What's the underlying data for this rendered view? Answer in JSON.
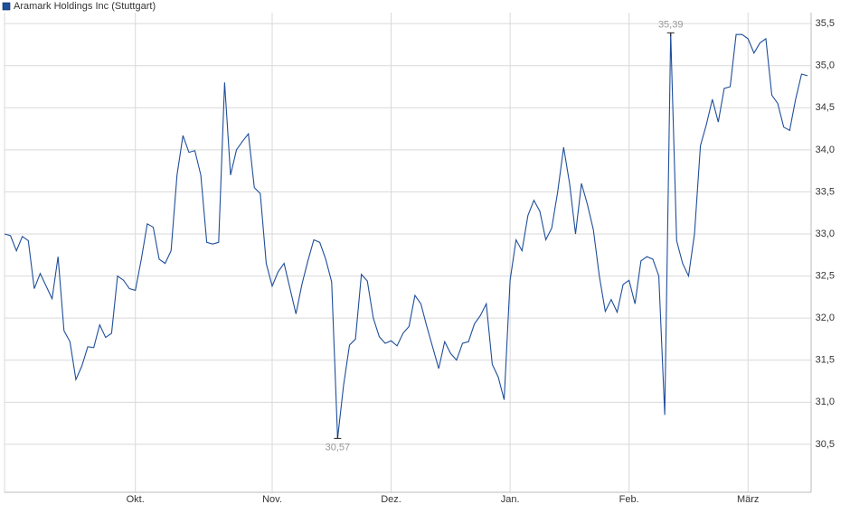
{
  "chart_data": {
    "type": "line",
    "series": [
      {
        "name": "Aramark Holdings Inc (Stuttgart)",
        "color": "#1f4e9a",
        "values": [
          33.0,
          32.98,
          32.8,
          32.97,
          32.92,
          32.35,
          32.53,
          32.38,
          32.23,
          32.73,
          31.85,
          31.72,
          31.27,
          31.43,
          31.66,
          31.65,
          31.92,
          31.77,
          31.82,
          32.5,
          32.45,
          32.35,
          32.33,
          32.7,
          33.12,
          33.08,
          32.7,
          32.65,
          32.8,
          33.7,
          34.17,
          33.97,
          33.99,
          33.7,
          32.9,
          32.88,
          32.9,
          34.8,
          33.7,
          34.0,
          34.1,
          34.19,
          33.55,
          33.48,
          32.65,
          32.38,
          32.55,
          32.65,
          32.35,
          32.05,
          32.4,
          32.68,
          32.93,
          32.9,
          32.7,
          32.43,
          30.57,
          31.2,
          31.68,
          31.75,
          32.52,
          32.44,
          32.0,
          31.78,
          31.7,
          31.73,
          31.67,
          31.82,
          31.9,
          32.27,
          32.17,
          31.9,
          31.65,
          31.4,
          31.72,
          31.58,
          31.5,
          31.7,
          31.72,
          31.93,
          32.03,
          32.17,
          31.45,
          31.3,
          31.03,
          32.45,
          32.93,
          32.8,
          33.22,
          33.4,
          33.27,
          32.93,
          33.07,
          33.5,
          34.03,
          33.6,
          33.0,
          33.6,
          33.35,
          33.05,
          32.5,
          32.08,
          32.22,
          32.07,
          32.4,
          32.45,
          32.17,
          32.68,
          32.73,
          32.7,
          32.5,
          30.85,
          35.39,
          32.92,
          32.65,
          32.5,
          33.0,
          34.05,
          34.3,
          34.6,
          34.33,
          34.73,
          34.75,
          35.37,
          35.37,
          35.32,
          35.15,
          35.27,
          35.32,
          34.65,
          34.55,
          34.27,
          34.23,
          34.6,
          34.9,
          34.88
        ],
        "value_labels": [
          null,
          null,
          null,
          null,
          null,
          null,
          null,
          null,
          null,
          null,
          null,
          null,
          null,
          null,
          null,
          null,
          null,
          null,
          null,
          null,
          null,
          null,
          null,
          null,
          null,
          null,
          null,
          null,
          null,
          null,
          null,
          null,
          null,
          null,
          null,
          null,
          null,
          null,
          null,
          null,
          null,
          null,
          null,
          null,
          null,
          null,
          null,
          null,
          null,
          null,
          null,
          null,
          null,
          null,
          null,
          null,
          "30,57",
          null,
          null,
          null,
          null,
          null,
          null,
          null,
          null,
          null,
          null,
          null,
          null,
          null,
          null,
          null,
          null,
          null,
          null,
          null,
          null,
          null,
          null,
          null,
          null,
          null,
          null,
          null,
          null,
          null,
          null,
          null,
          null,
          null,
          null,
          null,
          null,
          null,
          null,
          null,
          null,
          null,
          null,
          null,
          null,
          null,
          null,
          null,
          null,
          null,
          null,
          null,
          null,
          null,
          null,
          null,
          "35,39",
          null,
          null,
          null,
          null,
          null,
          null,
          null,
          null,
          null,
          null,
          null,
          null,
          null,
          null,
          null,
          null,
          null,
          null,
          null,
          null,
          null,
          null,
          null
        ]
      }
    ],
    "categories": [
      null,
      null,
      null,
      null,
      null,
      null,
      null,
      null,
      null,
      null,
      null,
      null,
      null,
      null,
      null,
      null,
      null,
      null,
      null,
      null,
      null,
      null,
      "Okt.",
      null,
      null,
      null,
      null,
      null,
      null,
      null,
      null,
      null,
      null,
      null,
      null,
      null,
      null,
      null,
      null,
      null,
      null,
      null,
      null,
      null,
      null,
      "Nov.",
      null,
      null,
      null,
      null,
      null,
      null,
      null,
      null,
      null,
      null,
      null,
      null,
      null,
      null,
      null,
      null,
      null,
      null,
      null,
      "Dez.",
      null,
      null,
      null,
      null,
      null,
      null,
      null,
      null,
      null,
      null,
      null,
      null,
      null,
      null,
      null,
      null,
      null,
      null,
      null,
      "Jan.",
      null,
      null,
      null,
      null,
      null,
      null,
      null,
      null,
      null,
      null,
      null,
      null,
      null,
      null,
      null,
      null,
      null,
      null,
      null,
      "Feb.",
      null,
      null,
      null,
      null,
      null,
      null,
      null,
      null,
      null,
      null,
      null,
      null,
      null,
      null,
      null,
      null,
      null,
      null,
      null,
      "März",
      null,
      null,
      null,
      null,
      null,
      null,
      null,
      null,
      null,
      null
    ],
    "ylim": [
      29.93,
      35.63
    ],
    "yticks": [
      {
        "value": 30.5,
        "label": "30,5"
      },
      {
        "value": 31.0,
        "label": "31,0"
      },
      {
        "value": 31.5,
        "label": "31,5"
      },
      {
        "value": 32.0,
        "label": "32,0"
      },
      {
        "value": 32.5,
        "label": "32,5"
      },
      {
        "value": 33.0,
        "label": "33,0"
      },
      {
        "value": 33.5,
        "label": "33,5"
      },
      {
        "value": 34.0,
        "label": "34,0"
      },
      {
        "value": 34.5,
        "label": "34,5"
      },
      {
        "value": 35.0,
        "label": "35,0"
      },
      {
        "value": 35.5,
        "label": "35,5"
      }
    ],
    "grid": true,
    "legend": "top-left"
  }
}
